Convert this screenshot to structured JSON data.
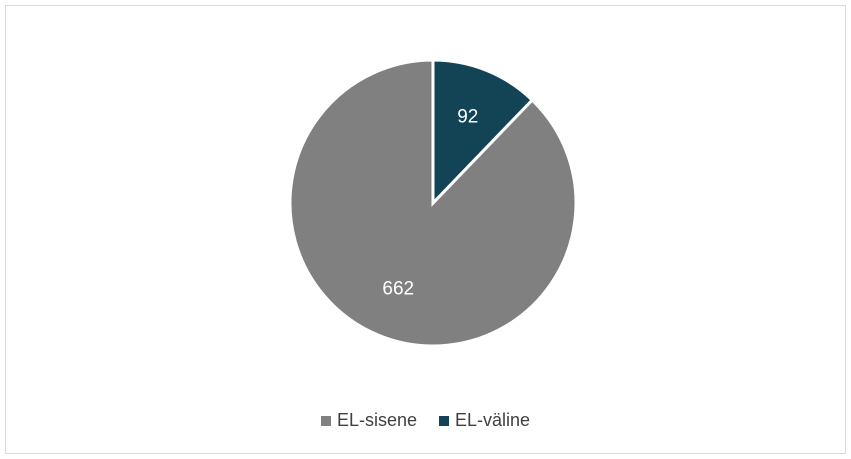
{
  "chart_data": {
    "type": "pie",
    "title": "",
    "slices": [
      {
        "label": "EL-sisene",
        "value": 662,
        "color": "#808080"
      },
      {
        "label": "EL-väline",
        "value": 92,
        "color": "#124456"
      }
    ],
    "start_angle_deg": 0,
    "direction": "counterclockwise",
    "legend_position": "bottom"
  }
}
